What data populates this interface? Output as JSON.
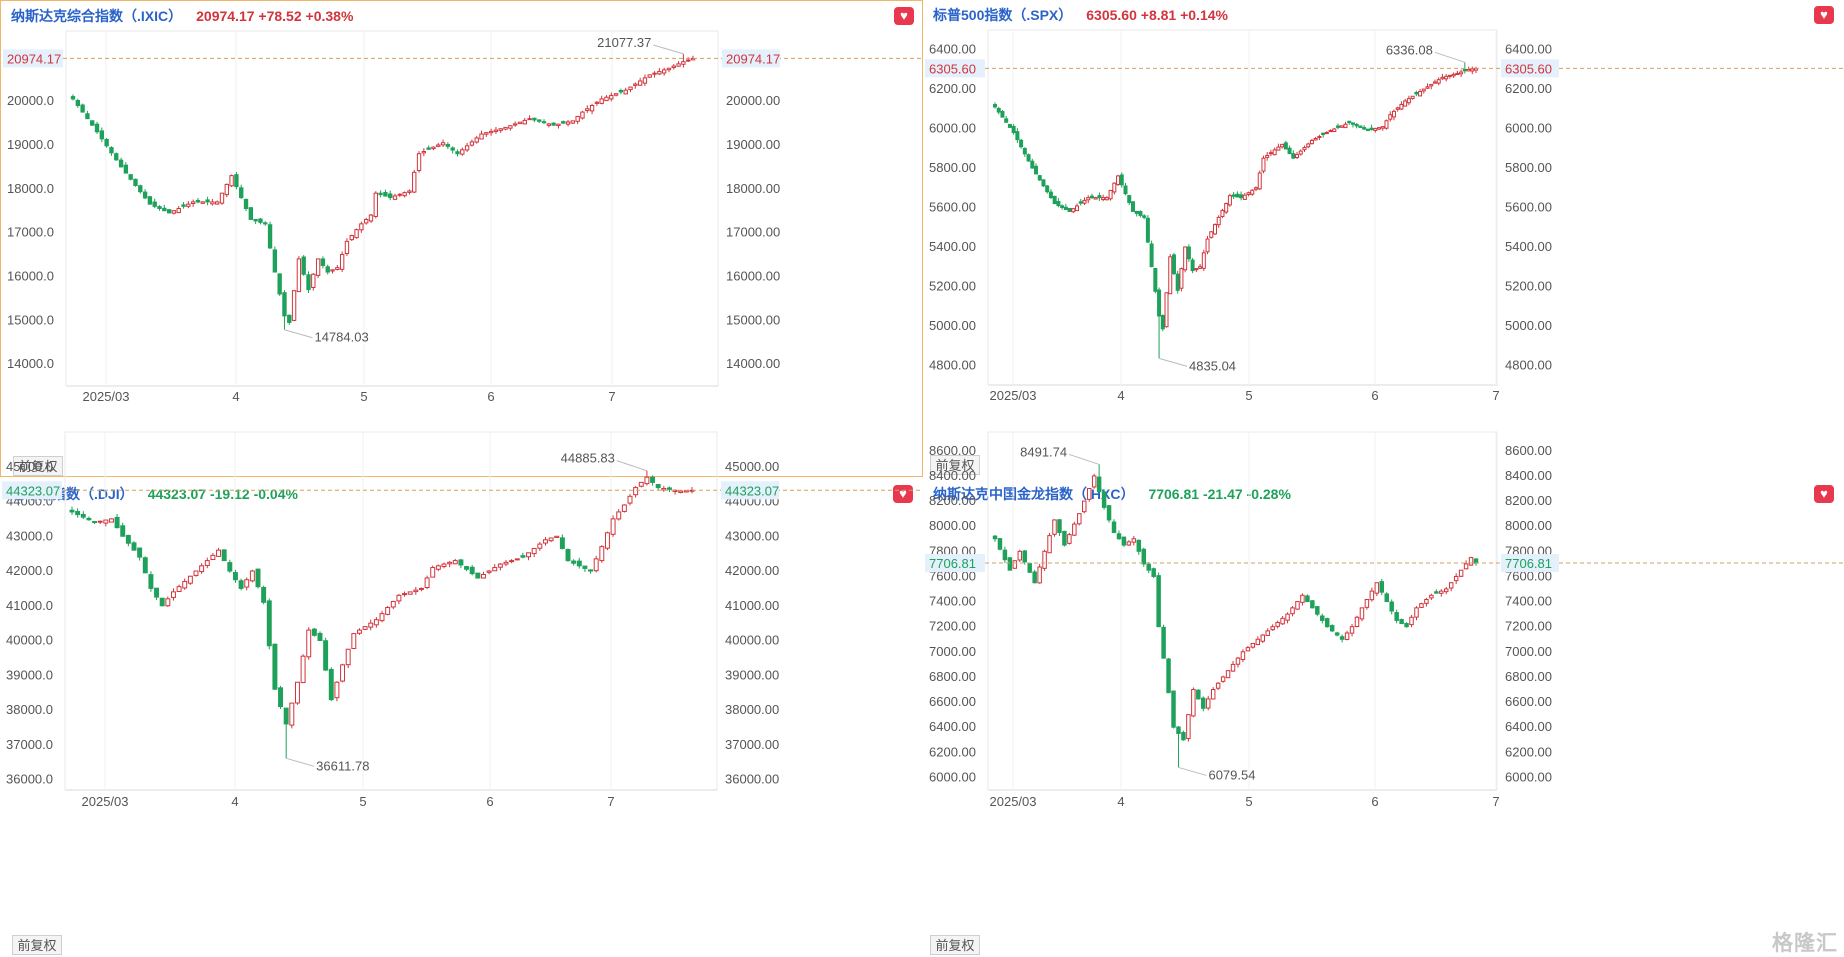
{
  "adj_label": "前复权",
  "watermark": "格隆汇",
  "colors": {
    "up": "#d2343c",
    "down": "#1ea15a",
    "title": "#2b64c9",
    "ref_line": "#d2a064"
  },
  "x_labels": [
    "2025/03",
    "4",
    "5",
    "6",
    "7"
  ],
  "panels": [
    {
      "id": "ixic",
      "name": "纳斯达克综合指数（.IXIC）",
      "price": "20974.17",
      "change": "+78.52",
      "pct": "+0.38%",
      "direction": "up",
      "active": true,
      "price_label": "20974.17",
      "chart_data": {
        "type": "candlestick",
        "ylim": [
          13500,
          21600
        ],
        "y_ticks": [
          "14000.00",
          "15000.00",
          "16000.00",
          "17000.00",
          "18000.00",
          "19000.00",
          "20000.00"
        ],
        "current": 20974.17,
        "max": {
          "value": 21077.37,
          "label": "21077.37"
        },
        "min": {
          "value": 14784.03,
          "label": "14784.03"
        },
        "anchors": [
          [
            0,
            20050
          ],
          [
            5,
            19300
          ],
          [
            10,
            18500
          ],
          [
            16,
            17650
          ],
          [
            20,
            17450
          ],
          [
            25,
            17700
          ],
          [
            30,
            17700
          ],
          [
            33,
            18300
          ],
          [
            37,
            17300
          ],
          [
            40,
            17200
          ],
          [
            42,
            16100
          ],
          [
            44,
            15100
          ],
          [
            45,
            14950
          ],
          [
            47,
            16400
          ],
          [
            49,
            15700
          ],
          [
            51,
            16400
          ],
          [
            53,
            16100
          ],
          [
            55,
            16200
          ],
          [
            57,
            16800
          ],
          [
            60,
            17200
          ],
          [
            62,
            17400
          ],
          [
            63,
            17900
          ],
          [
            66,
            17800
          ],
          [
            70,
            17950
          ],
          [
            72,
            18800
          ],
          [
            77,
            19050
          ],
          [
            80,
            18800
          ],
          [
            85,
            19250
          ],
          [
            90,
            19400
          ],
          [
            95,
            19600
          ],
          [
            100,
            19450
          ],
          [
            104,
            19550
          ],
          [
            106,
            19750
          ],
          [
            110,
            20050
          ],
          [
            115,
            20250
          ],
          [
            120,
            20600
          ],
          [
            124,
            20750
          ],
          [
            127,
            20900
          ],
          [
            129,
            20974
          ]
        ]
      }
    },
    {
      "id": "spx",
      "name": "标普500指数（.SPX）",
      "price": "6305.60",
      "change": "+8.81",
      "pct": "+0.14%",
      "direction": "up",
      "active": false,
      "price_label": "6305.60",
      "chart_data": {
        "type": "candlestick",
        "ylim": [
          4700,
          6500
        ],
        "y_ticks": [
          "4800.00",
          "5000.00",
          "5200.00",
          "5400.00",
          "5600.00",
          "5800.00",
          "6000.00",
          "6200.00",
          "6400.00"
        ],
        "current": 6305.6,
        "max": {
          "value": 6336.08,
          "label": "6336.08"
        },
        "min": {
          "value": 4835.04,
          "label": "4835.04"
        },
        "anchors": [
          [
            0,
            6110
          ],
          [
            5,
            5980
          ],
          [
            10,
            5800
          ],
          [
            16,
            5620
          ],
          [
            20,
            5580
          ],
          [
            25,
            5650
          ],
          [
            30,
            5650
          ],
          [
            33,
            5760
          ],
          [
            37,
            5580
          ],
          [
            40,
            5550
          ],
          [
            42,
            5300
          ],
          [
            44,
            5050
          ],
          [
            45,
            4985
          ],
          [
            47,
            5350
          ],
          [
            49,
            5180
          ],
          [
            51,
            5400
          ],
          [
            53,
            5280
          ],
          [
            55,
            5300
          ],
          [
            57,
            5440
          ],
          [
            60,
            5550
          ],
          [
            62,
            5620
          ],
          [
            63,
            5660
          ],
          [
            66,
            5650
          ],
          [
            70,
            5700
          ],
          [
            72,
            5850
          ],
          [
            77,
            5920
          ],
          [
            80,
            5850
          ],
          [
            85,
            5940
          ],
          [
            90,
            5990
          ],
          [
            95,
            6030
          ],
          [
            100,
            5990
          ],
          [
            104,
            6010
          ],
          [
            106,
            6070
          ],
          [
            110,
            6140
          ],
          [
            115,
            6200
          ],
          [
            120,
            6260
          ],
          [
            124,
            6280
          ],
          [
            127,
            6300
          ],
          [
            129,
            6305
          ]
        ]
      }
    },
    {
      "id": "dji",
      "name": "道琼斯指数（.DJI）",
      "price": "44323.07",
      "change": "-19.12",
      "pct": "-0.04%",
      "direction": "down",
      "active": false,
      "price_label": "44323.07",
      "chart_data": {
        "type": "candlestick",
        "ylim": [
          35700,
          46000
        ],
        "y_ticks": [
          "36000.00",
          "37000.00",
          "38000.00",
          "39000.00",
          "40000.00",
          "41000.00",
          "42000.00",
          "43000.00",
          "44000.00",
          "45000.00"
        ],
        "current": 44323.07,
        "max": {
          "value": 44885.83,
          "label": "44885.83"
        },
        "min": {
          "value": 36611.78,
          "label": "36611.78"
        },
        "anchors": [
          [
            0,
            43700
          ],
          [
            4,
            43400
          ],
          [
            7,
            43500
          ],
          [
            9,
            43000
          ],
          [
            12,
            42400
          ],
          [
            14,
            41500
          ],
          [
            16,
            41000
          ],
          [
            18,
            41400
          ],
          [
            22,
            42000
          ],
          [
            26,
            42600
          ],
          [
            28,
            42000
          ],
          [
            30,
            41500
          ],
          [
            32,
            42000
          ],
          [
            34,
            41100
          ],
          [
            36,
            38600
          ],
          [
            38,
            37600
          ],
          [
            40,
            38800
          ],
          [
            42,
            40300
          ],
          [
            44,
            40000
          ],
          [
            46,
            38300
          ],
          [
            48,
            39300
          ],
          [
            50,
            40200
          ],
          [
            54,
            40600
          ],
          [
            58,
            41300
          ],
          [
            62,
            41500
          ],
          [
            64,
            42100
          ],
          [
            68,
            42300
          ],
          [
            72,
            41800
          ],
          [
            76,
            42200
          ],
          [
            80,
            42400
          ],
          [
            84,
            42900
          ],
          [
            86,
            43000
          ],
          [
            88,
            42300
          ],
          [
            92,
            42000
          ],
          [
            94,
            42700
          ],
          [
            96,
            43500
          ],
          [
            98,
            43900
          ],
          [
            100,
            44400
          ],
          [
            102,
            44700
          ],
          [
            104,
            44400
          ],
          [
            108,
            44300
          ],
          [
            110,
            44323
          ]
        ]
      }
    },
    {
      "id": "hxc",
      "name": "纳斯达克中国金龙指数（.HXC）",
      "price": "7706.81",
      "change": "-21.47",
      "pct": "-0.28%",
      "direction": "down",
      "active": false,
      "price_label": "7706.81",
      "chart_data": {
        "type": "candlestick",
        "ylim": [
          5900,
          8750
        ],
        "y_ticks": [
          "6000.00",
          "6200.00",
          "6400.00",
          "6600.00",
          "6800.00",
          "7000.00",
          "7200.00",
          "7400.00",
          "7600.00",
          "7800.00",
          "8000.00",
          "8200.00",
          "8400.00",
          "8600.00"
        ],
        "current": 7706.81,
        "max": {
          "value": 8491.74,
          "label": "8491.74"
        },
        "min": {
          "value": 6079.54,
          "label": "6079.54"
        },
        "anchors": [
          [
            0,
            7900
          ],
          [
            3,
            7650
          ],
          [
            5,
            7800
          ],
          [
            8,
            7550
          ],
          [
            10,
            7800
          ],
          [
            12,
            8050
          ],
          [
            14,
            7850
          ],
          [
            17,
            8100
          ],
          [
            20,
            8400
          ],
          [
            22,
            8150
          ],
          [
            24,
            7950
          ],
          [
            26,
            7850
          ],
          [
            28,
            7900
          ],
          [
            30,
            7700
          ],
          [
            32,
            7600
          ],
          [
            33,
            7200
          ],
          [
            34,
            6950
          ],
          [
            36,
            6400
          ],
          [
            38,
            6300
          ],
          [
            40,
            6700
          ],
          [
            42,
            6550
          ],
          [
            44,
            6700
          ],
          [
            46,
            6800
          ],
          [
            48,
            6900
          ],
          [
            50,
            7000
          ],
          [
            53,
            7100
          ],
          [
            56,
            7200
          ],
          [
            59,
            7300
          ],
          [
            62,
            7450
          ],
          [
            64,
            7350
          ],
          [
            67,
            7200
          ],
          [
            70,
            7100
          ],
          [
            72,
            7200
          ],
          [
            74,
            7350
          ],
          [
            77,
            7550
          ],
          [
            79,
            7400
          ],
          [
            81,
            7250
          ],
          [
            83,
            7200
          ],
          [
            85,
            7350
          ],
          [
            88,
            7450
          ],
          [
            91,
            7500
          ],
          [
            94,
            7650
          ],
          [
            96,
            7750
          ],
          [
            97,
            7706
          ]
        ]
      }
    }
  ]
}
